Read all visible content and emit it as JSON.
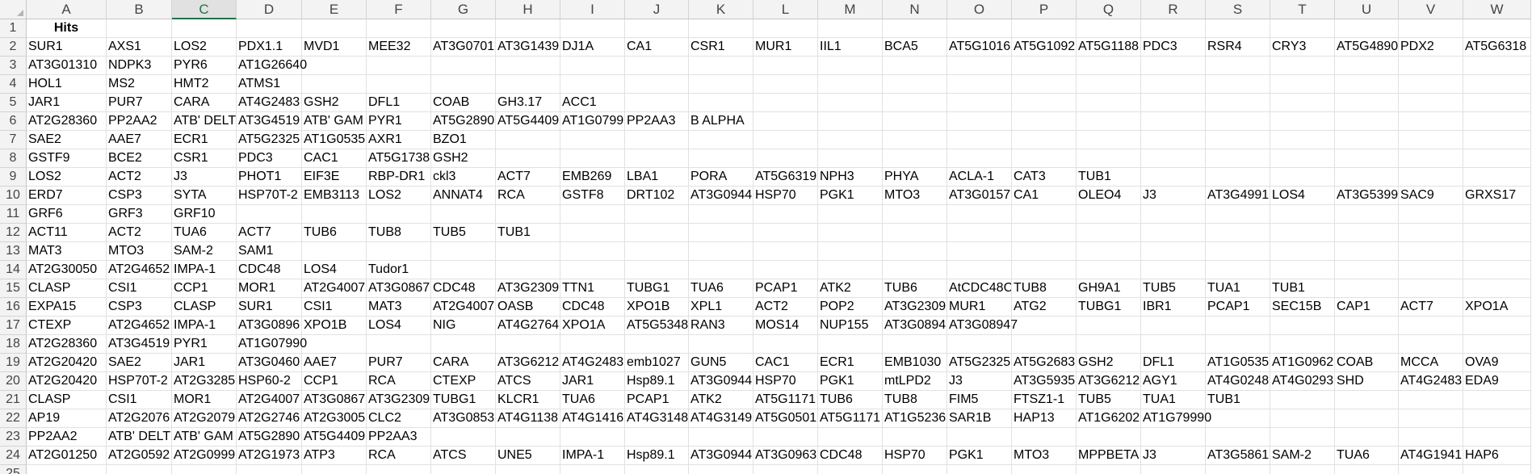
{
  "sheet": {
    "columns": [
      "A",
      "B",
      "C",
      "D",
      "E",
      "F",
      "G",
      "H",
      "I",
      "J",
      "K",
      "L",
      "M",
      "N",
      "O",
      "P",
      "Q",
      "R",
      "S",
      "T",
      "U",
      "V",
      "W"
    ],
    "selected_column": "C",
    "rows": [
      [
        "Hits"
      ],
      [
        "SUR1",
        "AXS1",
        "LOS2",
        "PDX1.1",
        "MVD1",
        "MEE32",
        "AT3G0701",
        "AT3G1439",
        "DJ1A",
        "CA1",
        "CSR1",
        "MUR1",
        "IIL1",
        "BCA5",
        "AT5G1016",
        "AT5G1092",
        "AT5G1188",
        "PDC3",
        "RSR4",
        "CRY3",
        "AT5G4890",
        "PDX2",
        "AT5G6318"
      ],
      [
        "AT3G01310",
        "NDPK3",
        "PYR6",
        "AT1G26640"
      ],
      [
        "HOL1",
        "MS2",
        "HMT2",
        "ATMS1"
      ],
      [
        "JAR1",
        "PUR7",
        "CARA",
        "AT4G2483",
        "GSH2",
        "DFL1",
        "COAB",
        "GH3.17",
        "ACC1"
      ],
      [
        "AT2G28360",
        "PP2AA2",
        "ATB' DELT",
        "AT3G4519",
        "ATB' GAM",
        "PYR1",
        "AT5G2890",
        "AT5G4409",
        "AT1G0799",
        "PP2AA3",
        "B ALPHA"
      ],
      [
        "SAE2",
        "AAE7",
        "ECR1",
        "AT5G2325",
        "AT1G0535",
        "AXR1",
        "BZO1"
      ],
      [
        "GSTF9",
        "BCE2",
        "CSR1",
        "PDC3",
        "CAC1",
        "AT5G1738",
        "GSH2"
      ],
      [
        "LOS2",
        "ACT2",
        "J3",
        "PHOT1",
        "EIF3E",
        "RBP-DR1",
        "ckl3",
        "ACT7",
        "EMB269",
        "LBA1",
        "PORA",
        "AT5G6319",
        "NPH3",
        "PHYA",
        "ACLA-1",
        "CAT3",
        "TUB1"
      ],
      [
        "ERD7",
        "CSP3",
        "SYTA",
        "HSP70T-2",
        "EMB3113",
        "LOS2",
        "ANNAT4",
        "RCA",
        "GSTF8",
        "DRT102",
        "AT3G0944",
        "HSP70",
        "PGK1",
        "MTO3",
        "AT3G0157",
        "CA1",
        "OLEO4",
        "J3",
        "AT3G4991",
        "LOS4",
        "AT3G5399",
        "SAC9",
        "GRXS17"
      ],
      [
        "GRF6",
        "GRF3",
        "GRF10"
      ],
      [
        "ACT11",
        "ACT2",
        "TUA6",
        "ACT7",
        "TUB6",
        "TUB8",
        "TUB5",
        "TUB1"
      ],
      [
        "MAT3",
        "MTO3",
        "SAM-2",
        "SAM1"
      ],
      [
        "AT2G30050",
        "AT2G4652",
        "IMPA-1",
        "CDC48",
        "LOS4",
        "Tudor1"
      ],
      [
        "CLASP",
        "CSI1",
        "CCP1",
        "MOR1",
        "AT2G4007",
        "AT3G0867",
        "CDC48",
        "AT3G2309",
        "TTN1",
        "TUBG1",
        "TUA6",
        "PCAP1",
        "ATK2",
        "TUB6",
        "AtCDC48C",
        "TUB8",
        "GH9A1",
        "TUB5",
        "TUA1",
        "TUB1"
      ],
      [
        "EXPA15",
        "CSP3",
        "CLASP",
        "SUR1",
        "CSI1",
        "MAT3",
        "AT2G4007",
        "OASB",
        "CDC48",
        "XPO1B",
        "XPL1",
        "ACT2",
        "POP2",
        "AT3G2309",
        "MUR1",
        "ATG2",
        "TUBG1",
        "IBR1",
        "PCAP1",
        "SEC15B",
        "CAP1",
        "ACT7",
        "XPO1A"
      ],
      [
        "CTEXP",
        "AT2G4652",
        "IMPA-1",
        "AT3G0896",
        "XPO1B",
        "LOS4",
        "NIG",
        "AT4G2764",
        "XPO1A",
        "AT5G5348",
        "RAN3",
        "MOS14",
        "NUP155",
        "AT3G0894",
        "AT3G08947"
      ],
      [
        "AT2G28360",
        "AT3G4519",
        "PYR1",
        "AT1G07990"
      ],
      [
        "AT2G20420",
        "SAE2",
        "JAR1",
        "AT3G0460",
        "AAE7",
        "PUR7",
        "CARA",
        "AT3G6212",
        "AT4G2483",
        "emb1027",
        "GUN5",
        "CAC1",
        "ECR1",
        "EMB1030",
        "AT5G2325",
        "AT5G2683",
        "GSH2",
        "DFL1",
        "AT1G0535",
        "AT1G0962",
        "COAB",
        "MCCA",
        "OVA9"
      ],
      [
        "AT2G20420",
        "HSP70T-2",
        "AT2G3285",
        "HSP60-2",
        "CCP1",
        "RCA",
        "CTEXP",
        "ATCS",
        "JAR1",
        "Hsp89.1",
        "AT3G0944",
        "HSP70",
        "PGK1",
        "mtLPD2",
        "J3",
        "AT3G5935",
        "AT3G6212",
        "AGY1",
        "AT4G0248",
        "AT4G0293",
        "SHD",
        "AT4G2483",
        "EDA9"
      ],
      [
        "CLASP",
        "CSI1",
        "MOR1",
        "AT2G4007",
        "AT3G0867",
        "AT3G2309",
        "TUBG1",
        "KLCR1",
        "TUA6",
        "PCAP1",
        "ATK2",
        "AT5G1171",
        "TUB6",
        "TUB8",
        "FIM5",
        "FTSZ1-1",
        "TUB5",
        "TUA1",
        "TUB1"
      ],
      [
        "AP19",
        "AT2G2076",
        "AT2G2079",
        "AT2G2746",
        "AT2G3005",
        "CLC2",
        "AT3G0853",
        "AT4G1138",
        "AT4G1416",
        "AT4G3148",
        "AT4G3149",
        "AT5G0501",
        "AT5G1171",
        "AT1G5236",
        "SAR1B",
        "HAP13",
        "AT1G6202",
        "AT1G79990"
      ],
      [
        "PP2AA2",
        "ATB' DELT",
        "ATB' GAM",
        "AT5G2890",
        "AT5G4409",
        "PP2AA3"
      ],
      [
        "AT2G01250",
        "AT2G0592",
        "AT2G0999",
        "AT2G1973",
        "ATP3",
        "RCA",
        "ATCS",
        "UNE5",
        "IMPA-1",
        "Hsp89.1",
        "AT3G0944",
        "AT3G0963",
        "CDC48",
        "HSP70",
        "PGK1",
        "MTO3",
        "MPPBETA",
        "J3",
        "AT3G5861",
        "SAM-2",
        "TUA6",
        "AT4G1941",
        "HAP6"
      ],
      []
    ]
  }
}
